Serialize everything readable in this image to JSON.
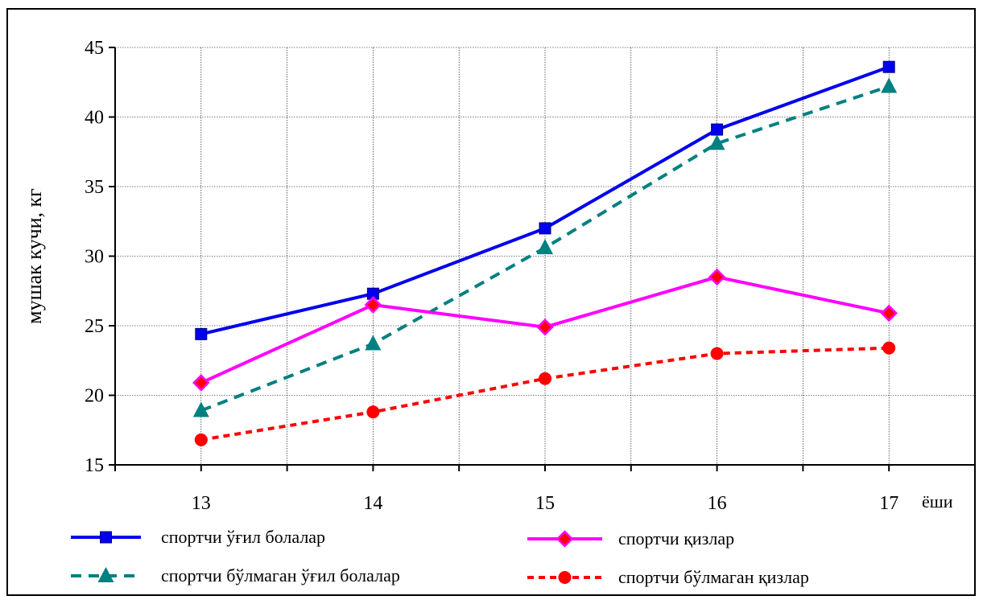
{
  "chart_data": {
    "type": "line",
    "xlabel": "ёши",
    "ylabel": "мушак кучи, кг",
    "x": [
      13,
      14,
      15,
      16,
      17
    ],
    "ylim": [
      15,
      45
    ],
    "yticks": [
      15,
      20,
      25,
      30,
      35,
      40,
      45
    ],
    "grid": true,
    "legend_position": "bottom",
    "series": [
      {
        "name": "спортчи ўғил болалар",
        "values": [
          24.4,
          27.3,
          32.0,
          39.1,
          43.6
        ],
        "color": "#0000ee",
        "marker": "square",
        "line": "solid"
      },
      {
        "name": "спортчи бўлмаган ўғил болалар",
        "values": [
          18.9,
          23.7,
          30.6,
          38.1,
          42.2
        ],
        "color": "#008080",
        "marker": "triangle",
        "line": "dashed"
      },
      {
        "name": "спортчи қизлар",
        "values": [
          20.9,
          26.5,
          24.9,
          28.5,
          25.9
        ],
        "color": "#ff00ff",
        "marker": "diamond",
        "line": "solid"
      },
      {
        "name": "спортчи бўлмаган қизлар",
        "values": [
          16.8,
          18.8,
          21.2,
          23.0,
          23.4
        ],
        "color": "#ff0000",
        "marker": "circle",
        "line": "dotted"
      }
    ]
  }
}
